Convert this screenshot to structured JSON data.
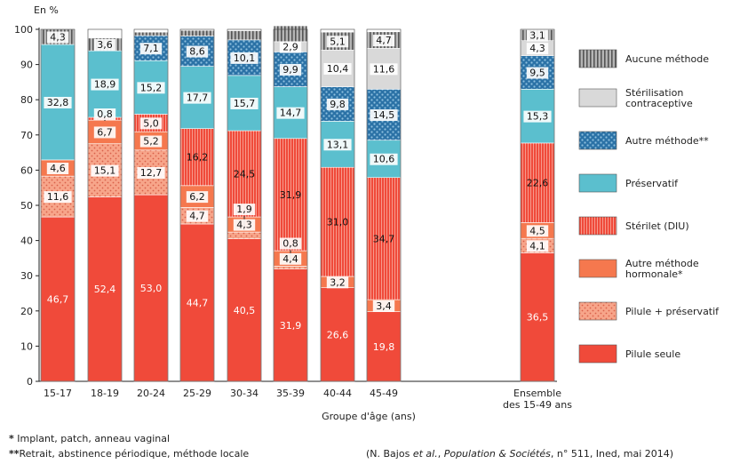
{
  "chart_data": {
    "type": "bar",
    "stacked": true,
    "ylabel": "En %",
    "xlabel": "Groupe d'âge (ans)",
    "ylim": [
      0,
      100
    ],
    "yticks": [
      0,
      10,
      20,
      30,
      40,
      50,
      60,
      70,
      80,
      90,
      100
    ],
    "categories": [
      "15-17",
      "18-19",
      "20-24",
      "25-29",
      "30-34",
      "35-39",
      "40-44",
      "45-49",
      "Ensemble des 15-49 ans"
    ],
    "series": [
      {
        "name": "Pilule seule",
        "color": "#f04a3a",
        "values": [
          46.7,
          52.4,
          53.0,
          44.7,
          40.5,
          31.9,
          26.6,
          19.8,
          36.5
        ]
      },
      {
        "name": "Pilule + préservatif",
        "color": "#f7a58a",
        "values": [
          11.6,
          15.1,
          12.7,
          4.7,
          1.9,
          0.8,
          0.0,
          0.0,
          4.1
        ]
      },
      {
        "name": "Autre méthode hormonale*",
        "color": "#f5784e",
        "values": [
          4.6,
          6.7,
          5.2,
          6.2,
          4.3,
          4.4,
          3.2,
          3.4,
          4.5
        ]
      },
      {
        "name": "Stérilet (DIU)",
        "color": "#f25a4c",
        "values": [
          0.0,
          0.8,
          5.0,
          16.2,
          24.5,
          31.9,
          31.0,
          34.7,
          22.6
        ]
      },
      {
        "name": "Préservatif",
        "color": "#5bbfce",
        "values": [
          32.8,
          18.9,
          15.2,
          17.7,
          15.7,
          14.7,
          13.1,
          10.6,
          15.3
        ]
      },
      {
        "name": "Autre méthode**",
        "color": "#2b72a6",
        "values": [
          0.0,
          0.0,
          7.1,
          8.6,
          10.1,
          9.9,
          9.8,
          14.5,
          9.5
        ]
      },
      {
        "name": "Stérilisation contraceptive",
        "color": "#d9d9d9",
        "values": [
          0.0,
          0.0,
          0.0,
          0.0,
          0.0,
          2.9,
          10.4,
          11.6,
          4.3
        ]
      },
      {
        "name": "Aucune méthode",
        "color": "#8a8a8a",
        "values": [
          4.3,
          3.6,
          1.0,
          1.6,
          2.6,
          4.5,
          5.1,
          4.7,
          3.1
        ]
      }
    ],
    "labels": [
      [
        "46,7",
        "11,6",
        "4,6",
        "",
        "32,8",
        "",
        "",
        "4,3"
      ],
      [
        "52,4",
        "15,1",
        "6,7",
        "0,8",
        "18,9",
        "",
        "",
        "3,6"
      ],
      [
        "53,0",
        "12,7",
        "5,2",
        "5,0",
        "15,2",
        "7,1",
        "",
        ""
      ],
      [
        "44,7",
        "4,7",
        "6,2",
        "16,2",
        "17,7",
        "8,6",
        "",
        ""
      ],
      [
        "40,5",
        "1,9",
        "4,3",
        "24,5",
        "15,7",
        "10,1",
        "",
        ""
      ],
      [
        "31,9",
        "0,8",
        "4,4",
        "31,9",
        "14,7",
        "9,9",
        "2,9",
        ""
      ],
      [
        "26,6",
        "",
        "3,2",
        "31,0",
        "13,1",
        "9,8",
        "10,4",
        "5,1"
      ],
      [
        "19,8",
        "",
        "3,4",
        "34,7",
        "10,6",
        "14,5",
        "11,6",
        "4,7"
      ],
      [
        "36,5",
        "4,1",
        "4,5",
        "22,6",
        "15,3",
        "9,5",
        "4,3",
        "3,1"
      ]
    ],
    "legend": [
      [
        "Aucune méthode"
      ],
      [
        "Stérilisation",
        "contraceptive"
      ],
      [
        "Autre méthode**"
      ],
      [
        "Préservatif"
      ],
      [
        "Stérilet (DIU)"
      ],
      [
        "Autre méthode",
        "hormonale*"
      ],
      [
        "Pilule + préservatif"
      ],
      [
        "Pilule seule"
      ]
    ],
    "legend_placement": "right",
    "grid": false
  },
  "footnotes": {
    "note1": "Implant, patch, anneau vaginal",
    "note2": "Retrait, abstinence périodique, méthode locale",
    "star1": "*",
    "star2": "**",
    "source_prefix": "(N. Bajos ",
    "source_etal": "et al.",
    "source_mid": ", ",
    "source_journal": "Population & Sociétés",
    "source_suffix": ", n° 511, Ined, mai 2014)"
  }
}
